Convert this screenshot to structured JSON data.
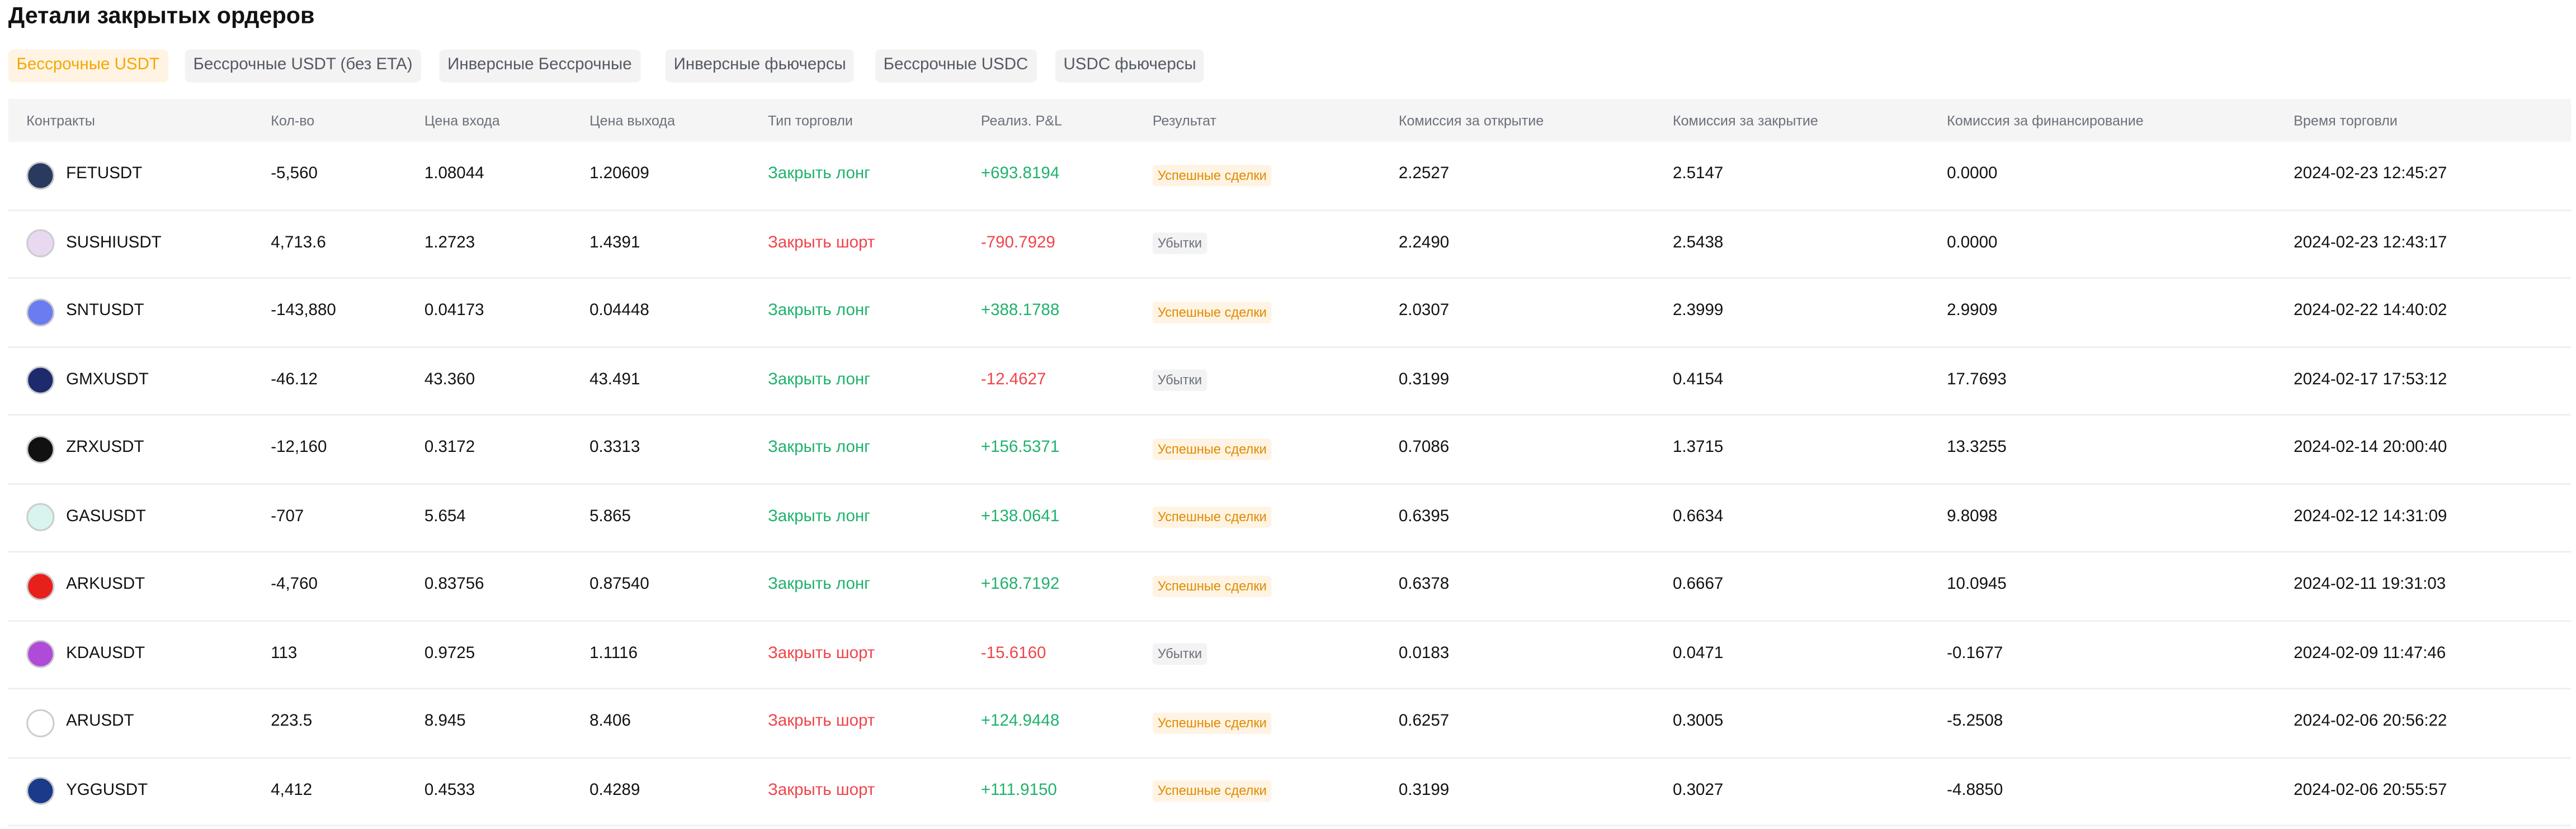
{
  "title": "Детали закрытых ордеров",
  "tabs": [
    "Бессрочные USDT",
    "Бессрочные USDT (без ETA)",
    "Инверсные Бессрочные",
    "Инверсные фьючерсы",
    "Бессрочные USDC",
    "USDC фьючерсы"
  ],
  "table": {
    "headers": [
      "Контракты",
      "Кол-во",
      "Цена входа",
      "Цена выхода",
      "Тип торговли",
      "Реализ. P&L",
      "Результат",
      "Комиссия за открытие",
      "Комиссия за закрытие",
      "Комиссия за финансирование",
      "Время торговли"
    ],
    "rows": [
      [
        "FETUSDT",
        "-5,560",
        "1.08044",
        "1.20609",
        "Закрыть лонг",
        "+693.8194",
        "Успешные сделки",
        "2.2527",
        "2.5147",
        "0.0000",
        "2024-02-23 12:45:27"
      ],
      [
        "SUSHIUSDT",
        "4,713.6",
        "1.2723",
        "1.4391",
        "Закрыть шорт",
        "-790.7929",
        "Убытки",
        "2.2490",
        "2.5438",
        "0.0000",
        "2024-02-23 12:43:17"
      ],
      [
        "SNTUSDT",
        "-143,880",
        "0.04173",
        "0.04448",
        "Закрыть лонг",
        "+388.1788",
        "Успешные сделки",
        "2.0307",
        "2.3999",
        "2.9909",
        "2024-02-22 14:40:02"
      ],
      [
        "GMXUSDT",
        "-46.12",
        "43.360",
        "43.491",
        "Закрыть лонг",
        "-12.4627",
        "Убытки",
        "0.3199",
        "0.4154",
        "17.7693",
        "2024-02-17 17:53:12"
      ],
      [
        "ZRXUSDT",
        "-12,160",
        "0.3172",
        "0.3313",
        "Закрыть лонг",
        "+156.5371",
        "Успешные сделки",
        "0.7086",
        "1.3715",
        "13.3255",
        "2024-02-14 20:00:40"
      ],
      [
        "GASUSDT",
        "-707",
        "5.654",
        "5.865",
        "Закрыть лонг",
        "+138.0641",
        "Успешные сделки",
        "0.6395",
        "0.6634",
        "9.8098",
        "2024-02-12 14:31:09"
      ],
      [
        "ARKUSDT",
        "-4,760",
        "0.83756",
        "0.87540",
        "Закрыть лонг",
        "+168.7192",
        "Успешные сделки",
        "0.6378",
        "0.6667",
        "10.0945",
        "2024-02-11 19:31:03"
      ],
      [
        "KDAUSDT",
        "113",
        "0.9725",
        "1.1116",
        "Закрыть шорт",
        "-15.6160",
        "Убытки",
        "0.0183",
        "0.0471",
        "-0.1677",
        "2024-02-09 11:47:46"
      ],
      [
        "ARUSDT",
        "223.5",
        "8.945",
        "8.406",
        "Закрыть шорт",
        "+124.9448",
        "Успешные сделки",
        "0.6257",
        "0.3005",
        "-5.2508",
        "2024-02-06 20:56:22"
      ],
      [
        "YGGUSDT",
        "4,412",
        "0.4533",
        "0.4289",
        "Закрыть шорт",
        "+111.9150",
        "Успешные сделки",
        "0.3199",
        "0.3027",
        "-4.8850",
        "2024-02-06 20:55:57"
      ]
    ]
  }
}
